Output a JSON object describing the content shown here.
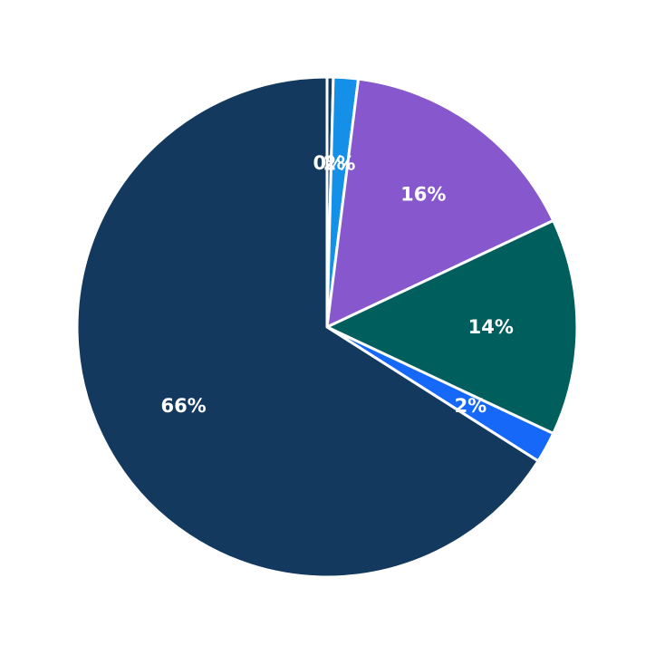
{
  "chart_data": {
    "type": "pie",
    "start_angle_deg": 90,
    "direction": "clockwise",
    "legend": "none",
    "slices": [
      {
        "value": 0.4,
        "label": "0%",
        "color": "#123a63"
      },
      {
        "value": 1.6,
        "label": "2%",
        "color": "#1590e8"
      },
      {
        "value": 16,
        "label": "16%",
        "color": "#8758cd"
      },
      {
        "value": 14,
        "label": "14%",
        "color": "#005f5d"
      },
      {
        "value": 2,
        "label": "2%",
        "color": "#1668f9"
      },
      {
        "value": 66,
        "label": "66%",
        "color": "#13395f"
      }
    ]
  }
}
